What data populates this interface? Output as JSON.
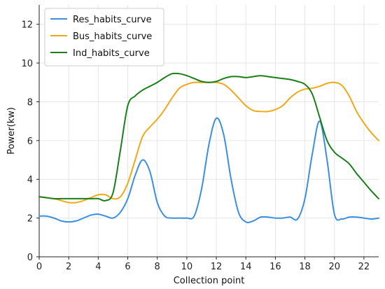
{
  "chart_data": {
    "type": "line",
    "xlabel": "Collection point",
    "ylabel": "Power(kw)",
    "xlim": [
      0,
      23
    ],
    "ylim": [
      0,
      13
    ],
    "xticks": [
      0,
      2,
      4,
      6,
      8,
      10,
      12,
      14,
      16,
      18,
      20,
      22
    ],
    "yticks": [
      0,
      2,
      4,
      6,
      8,
      10,
      12
    ],
    "grid": true,
    "legend_position": "top-left",
    "series": [
      {
        "name": "Res_habits_curve",
        "color": "#3b8fe0",
        "x": [
          0,
          0.5,
          1,
          1.5,
          2,
          2.5,
          3,
          3.5,
          4,
          4.5,
          5,
          5.5,
          6,
          6.5,
          7,
          7.5,
          8,
          8.5,
          9,
          9.5,
          10,
          10.5,
          11,
          11.5,
          12,
          12.5,
          13,
          13.5,
          14,
          14.5,
          15,
          15.5,
          16,
          16.5,
          17,
          17.5,
          18,
          18.5,
          19,
          19.5,
          20,
          20.5,
          21,
          21.5,
          22,
          22.5,
          23
        ],
        "values": [
          2.1,
          2.1,
          2.0,
          1.85,
          1.8,
          1.85,
          2.0,
          2.15,
          2.2,
          2.1,
          2.0,
          2.3,
          3.0,
          4.2,
          5.0,
          4.4,
          2.8,
          2.1,
          2.0,
          2.0,
          2.0,
          2.1,
          3.5,
          5.8,
          7.15,
          6.3,
          4.0,
          2.3,
          1.8,
          1.85,
          2.05,
          2.05,
          2.0,
          2.0,
          2.05,
          1.95,
          3.0,
          5.3,
          7.0,
          5.0,
          2.2,
          1.95,
          2.05,
          2.05,
          2.0,
          1.95,
          2.0
        ]
      },
      {
        "name": "Bus_habits_curve",
        "color": "#f0a818",
        "x": [
          0,
          0.5,
          1,
          1.5,
          2,
          2.5,
          3,
          3.5,
          4,
          4.5,
          5,
          5.5,
          6,
          6.5,
          7,
          7.5,
          8,
          8.5,
          9,
          9.5,
          10,
          10.5,
          11,
          11.5,
          12,
          12.5,
          13,
          13.5,
          14,
          14.5,
          15,
          15.5,
          16,
          16.5,
          17,
          17.5,
          18,
          18.5,
          19,
          19.5,
          20,
          20.5,
          21,
          21.5,
          22,
          22.5,
          23
        ],
        "values": [
          3.1,
          3.05,
          3.0,
          2.9,
          2.8,
          2.8,
          2.9,
          3.05,
          3.2,
          3.2,
          3.0,
          3.1,
          3.8,
          5.0,
          6.2,
          6.7,
          7.1,
          7.6,
          8.2,
          8.7,
          8.9,
          9.0,
          9.0,
          9.0,
          9.0,
          8.9,
          8.6,
          8.2,
          7.8,
          7.55,
          7.5,
          7.5,
          7.6,
          7.8,
          8.2,
          8.5,
          8.65,
          8.7,
          8.8,
          8.95,
          9.0,
          8.85,
          8.3,
          7.5,
          6.9,
          6.4,
          6.0
        ]
      },
      {
        "name": "Ind_habits_curve",
        "color": "#1a7f1a",
        "x": [
          0,
          0.5,
          1,
          1.5,
          2,
          2.5,
          3,
          3.5,
          4,
          4.5,
          5,
          5.5,
          6,
          6.5,
          7,
          7.5,
          8,
          8.5,
          9,
          9.5,
          10,
          10.5,
          11,
          11.5,
          12,
          12.5,
          13,
          13.5,
          14,
          14.5,
          15,
          15.5,
          16,
          16.5,
          17,
          17.5,
          18,
          18.5,
          19,
          19.5,
          20,
          20.5,
          21,
          21.5,
          22,
          22.5,
          23
        ],
        "values": [
          3.1,
          3.05,
          3.0,
          3.0,
          3.0,
          3.0,
          3.0,
          3.0,
          3.0,
          2.9,
          3.3,
          5.5,
          7.8,
          8.3,
          8.6,
          8.8,
          9.0,
          9.25,
          9.45,
          9.45,
          9.35,
          9.2,
          9.05,
          9.0,
          9.05,
          9.2,
          9.3,
          9.3,
          9.25,
          9.3,
          9.35,
          9.3,
          9.25,
          9.2,
          9.15,
          9.05,
          8.9,
          8.4,
          7.2,
          6.0,
          5.4,
          5.1,
          4.8,
          4.3,
          3.85,
          3.4,
          3.0
        ]
      }
    ]
  }
}
